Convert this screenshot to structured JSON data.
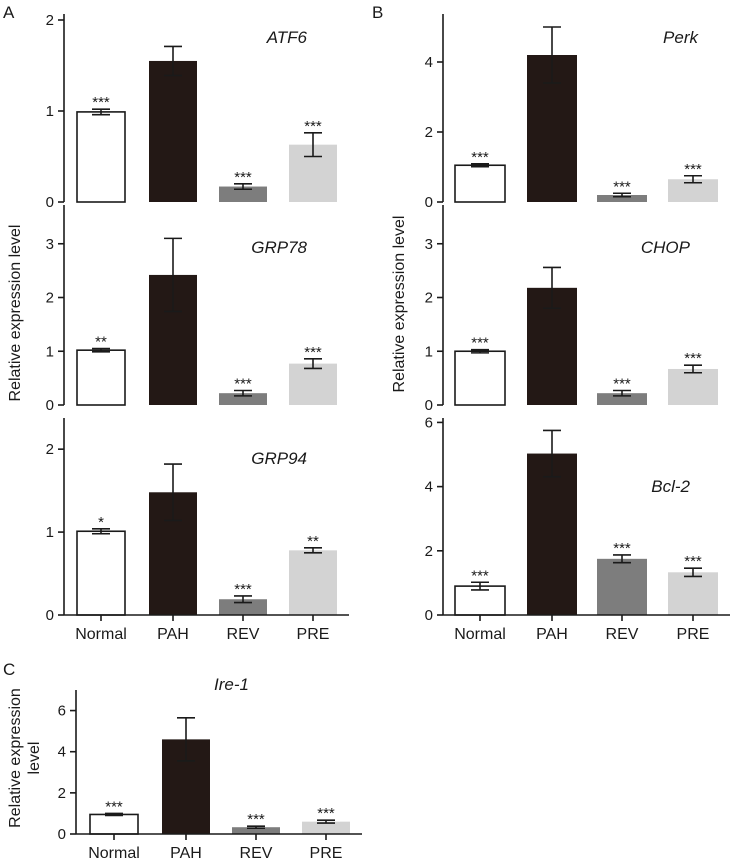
{
  "y_axis_label": "Relative expression level",
  "panel_c_ylabel": [
    "Relative expression",
    "level"
  ],
  "panel_letters": [
    "A",
    "B",
    "C"
  ],
  "categories": [
    "Normal",
    "PAH",
    "REV",
    "PRE"
  ],
  "colors": {
    "Normal": "#ffffff",
    "PAH": "#231815",
    "REV": "#7d7d7d",
    "PRE": "#d3d3d3",
    "axis": "#1a1a1a"
  },
  "chart_data": [
    {
      "type": "bar",
      "panel": "A",
      "title": "ATF6",
      "categories": [
        "Normal",
        "PAH",
        "REV",
        "PRE"
      ],
      "values": [
        0.99,
        1.55,
        0.17,
        0.63
      ],
      "errors": [
        0.03,
        0.16,
        0.03,
        0.13
      ],
      "significance": [
        "***",
        "",
        "***",
        "***"
      ],
      "ylim": [
        0,
        2
      ],
      "yticks": [
        0,
        1,
        2
      ],
      "ylabel": "Relative expression level"
    },
    {
      "type": "bar",
      "panel": "A",
      "title": "GRP78",
      "categories": [
        "Normal",
        "PAH",
        "REV",
        "PRE"
      ],
      "values": [
        1.02,
        2.42,
        0.22,
        0.77
      ],
      "errors": [
        0.03,
        0.68,
        0.05,
        0.09
      ],
      "significance": [
        "**",
        "",
        "***",
        "***"
      ],
      "ylim": [
        0,
        3.2
      ],
      "yticks": [
        0,
        1,
        2,
        3
      ],
      "ylabel": "Relative expression level"
    },
    {
      "type": "bar",
      "panel": "A",
      "title": "GRP94",
      "categories": [
        "Normal",
        "PAH",
        "REV",
        "PRE"
      ],
      "values": [
        1.01,
        1.48,
        0.19,
        0.78
      ],
      "errors": [
        0.03,
        0.34,
        0.04,
        0.03
      ],
      "significance": [
        "*",
        "",
        "***",
        "**"
      ],
      "ylim": [
        0,
        2.4
      ],
      "yticks": [
        0,
        1,
        2
      ],
      "ylabel": "Relative expression level"
    },
    {
      "type": "bar",
      "panel": "B",
      "title": "Perk",
      "categories": [
        "Normal",
        "PAH",
        "REV",
        "PRE"
      ],
      "values": [
        1.05,
        4.2,
        0.2,
        0.65
      ],
      "errors": [
        0.04,
        0.8,
        0.05,
        0.1
      ],
      "significance": [
        "***",
        "",
        "***",
        "***"
      ],
      "ylim": [
        0,
        5.2
      ],
      "yticks": [
        0,
        2,
        4
      ],
      "ylabel": "Relative expression level"
    },
    {
      "type": "bar",
      "panel": "B",
      "title": "CHOP",
      "categories": [
        "Normal",
        "PAH",
        "REV",
        "PRE"
      ],
      "values": [
        1.0,
        2.18,
        0.22,
        0.67
      ],
      "errors": [
        0.03,
        0.38,
        0.05,
        0.07
      ],
      "significance": [
        "***",
        "",
        "***",
        "***"
      ],
      "ylim": [
        0,
        3.2
      ],
      "yticks": [
        0,
        1,
        2,
        3
      ],
      "ylabel": "Relative expression level"
    },
    {
      "type": "bar",
      "panel": "B",
      "title": "Bcl-2",
      "categories": [
        "Normal",
        "PAH",
        "REV",
        "PRE"
      ],
      "values": [
        0.9,
        5.03,
        1.75,
        1.33
      ],
      "errors": [
        0.12,
        0.72,
        0.12,
        0.13
      ],
      "significance": [
        "***",
        "",
        "***",
        "***"
      ],
      "ylim": [
        0,
        6.2
      ],
      "yticks": [
        0,
        2,
        4,
        6
      ],
      "ylabel": "Relative expression level"
    },
    {
      "type": "bar",
      "panel": "C",
      "title": "Ire-1",
      "categories": [
        "Normal",
        "PAH",
        "REV",
        "PRE"
      ],
      "values": [
        0.95,
        4.6,
        0.33,
        0.6
      ],
      "errors": [
        0.05,
        1.05,
        0.05,
        0.07
      ],
      "significance": [
        "***",
        "",
        "***",
        "***"
      ],
      "ylim": [
        0,
        7
      ],
      "yticks": [
        0,
        2,
        4,
        6
      ],
      "ylabel": "Relative expression level"
    }
  ]
}
